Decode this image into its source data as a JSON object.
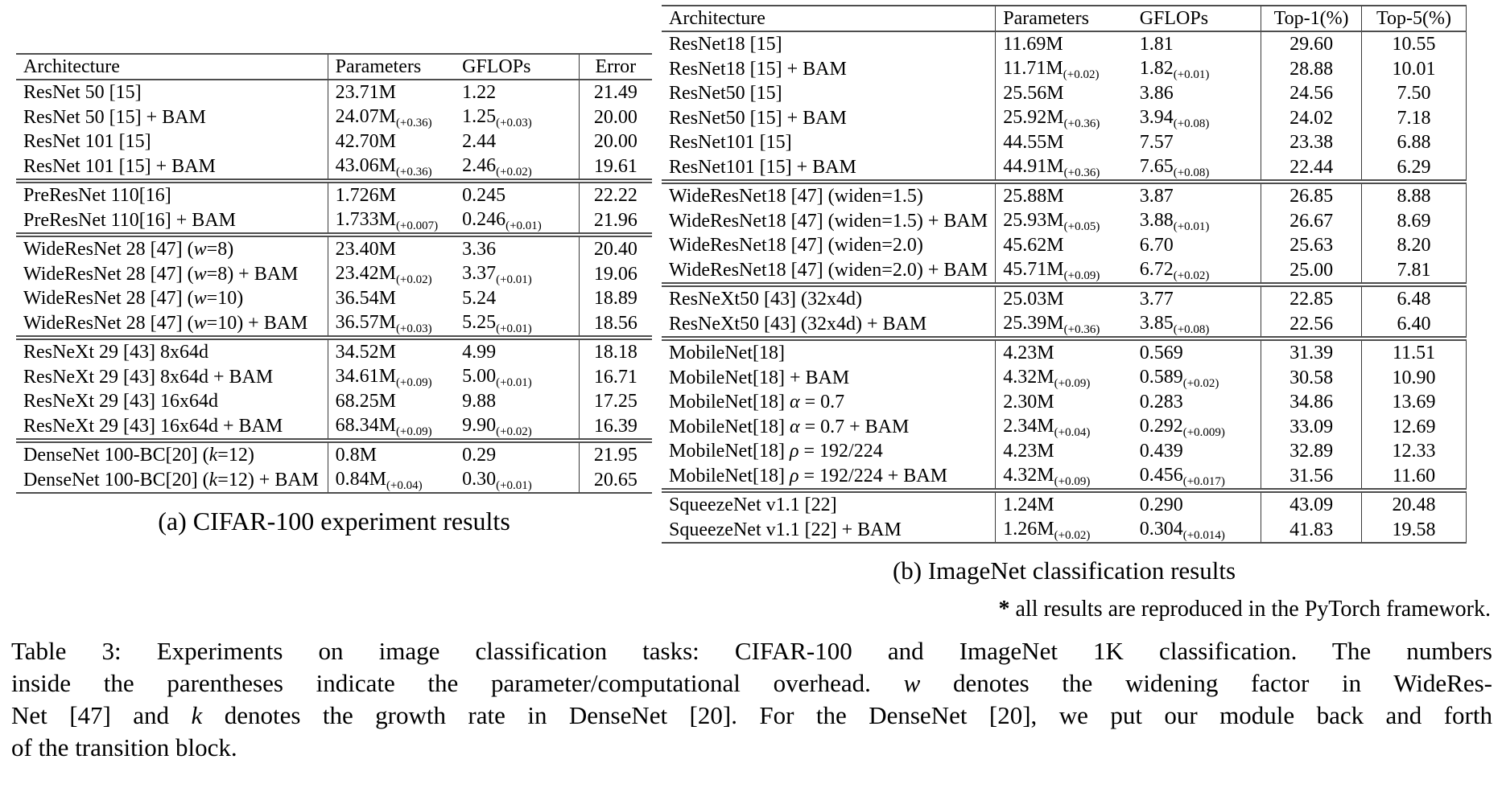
{
  "table_a": {
    "caption": "(a) CIFAR-100 experiment results",
    "columns": [
      "Architecture",
      "Parameters",
      "GFLOPs",
      "Error"
    ],
    "groups": [
      [
        {
          "arch": [
            {
              "t": "ResNet 50 [15]"
            }
          ],
          "p": "23.71M",
          "ps": "",
          "g": "1.22",
          "gs": "",
          "m": [
            "21.49"
          ],
          "b": false
        },
        {
          "arch": [
            {
              "t": "ResNet 50 [15] + BAM"
            }
          ],
          "p": "24.07M",
          "ps": "(+0.36)",
          "g": "1.25",
          "gs": "(+0.03)",
          "m": [
            "20.00"
          ],
          "b": true
        },
        {
          "arch": [
            {
              "t": "ResNet 101 [15]"
            }
          ],
          "p": "42.70M",
          "ps": "",
          "g": "2.44",
          "gs": "",
          "m": [
            "20.00"
          ],
          "b": false
        },
        {
          "arch": [
            {
              "t": "ResNet 101 [15] + BAM"
            }
          ],
          "p": "43.06M",
          "ps": "(+0.36)",
          "g": "2.46",
          "gs": "(+0.02)",
          "m": [
            "19.61"
          ],
          "b": true
        }
      ],
      [
        {
          "arch": [
            {
              "t": "PreResNet 110[16]"
            }
          ],
          "p": "1.726M",
          "ps": "",
          "g": "0.245",
          "gs": "",
          "m": [
            "22.22"
          ],
          "b": false
        },
        {
          "arch": [
            {
              "t": "PreResNet 110[16] + BAM"
            }
          ],
          "p": "1.733M",
          "ps": "(+0.007)",
          "g": "0.246",
          "gs": "(+0.01)",
          "m": [
            "21.96"
          ],
          "b": true
        }
      ],
      [
        {
          "arch": [
            {
              "t": "WideResNet 28 [47] ("
            },
            {
              "t": "w",
              "i": true
            },
            {
              "t": "=8)"
            }
          ],
          "p": "23.40M",
          "ps": "",
          "g": "3.36",
          "gs": "",
          "m": [
            "20.40"
          ],
          "b": false
        },
        {
          "arch": [
            {
              "t": "WideResNet 28 [47] ("
            },
            {
              "t": "w",
              "i": true
            },
            {
              "t": "=8) + BAM"
            }
          ],
          "p": "23.42M",
          "ps": "(+0.02)",
          "g": "3.37",
          "gs": "(+0.01)",
          "m": [
            "19.06"
          ],
          "b": true
        },
        {
          "arch": [
            {
              "t": "WideResNet 28 [47] ("
            },
            {
              "t": "w",
              "i": true
            },
            {
              "t": "=10)"
            }
          ],
          "p": "36.54M",
          "ps": "",
          "g": "5.24",
          "gs": "",
          "m": [
            "18.89"
          ],
          "b": false
        },
        {
          "arch": [
            {
              "t": "WideResNet 28 [47] ("
            },
            {
              "t": "w",
              "i": true
            },
            {
              "t": "=10) + BAM"
            }
          ],
          "p": "36.57M",
          "ps": "(+0.03)",
          "g": "5.25",
          "gs": "(+0.01)",
          "m": [
            "18.56"
          ],
          "b": true
        }
      ],
      [
        {
          "arch": [
            {
              "t": "ResNeXt 29 [43] 8x64d"
            }
          ],
          "p": "34.52M",
          "ps": "",
          "g": "4.99",
          "gs": "",
          "m": [
            "18.18"
          ],
          "b": false
        },
        {
          "arch": [
            {
              "t": "ResNeXt 29 [43] 8x64d + BAM"
            }
          ],
          "p": "34.61M",
          "ps": "(+0.09)",
          "g": "5.00",
          "gs": "(+0.01)",
          "m": [
            "16.71"
          ],
          "b": true
        },
        {
          "arch": [
            {
              "t": "ResNeXt 29 [43] 16x64d"
            }
          ],
          "p": "68.25M",
          "ps": "",
          "g": "9.88",
          "gs": "",
          "m": [
            "17.25"
          ],
          "b": false
        },
        {
          "arch": [
            {
              "t": "ResNeXt 29 [43] 16x64d + BAM"
            }
          ],
          "p": "68.34M",
          "ps": "(+0.09)",
          "g": "9.90",
          "gs": "(+0.02)",
          "m": [
            "16.39"
          ],
          "b": true
        }
      ],
      [
        {
          "arch": [
            {
              "t": "DenseNet 100-BC[20] ("
            },
            {
              "t": "k",
              "i": true
            },
            {
              "t": "=12)"
            }
          ],
          "p": "0.8M",
          "ps": "",
          "g": "0.29",
          "gs": "",
          "m": [
            "21.95"
          ],
          "b": false
        },
        {
          "arch": [
            {
              "t": "DenseNet 100-BC[20] ("
            },
            {
              "t": "k",
              "i": true
            },
            {
              "t": "=12) + BAM"
            }
          ],
          "p": "0.84M",
          "ps": "(+0.04)",
          "g": "0.30",
          "gs": "(+0.01)",
          "m": [
            "20.65"
          ],
          "b": true
        }
      ]
    ]
  },
  "table_b": {
    "caption": "(b) ImageNet classification results",
    "columns": [
      "Architecture",
      "Parameters",
      "GFLOPs",
      "Top-1(%)",
      "Top-5(%)"
    ],
    "footnote": {
      "star": "*",
      "text": " all results are reproduced in the PyTorch framework."
    },
    "groups": [
      [
        {
          "arch": [
            {
              "t": "ResNet18 [15]"
            }
          ],
          "p": "11.69M",
          "ps": "",
          "g": "1.81",
          "gs": "",
          "m": [
            "29.60",
            "10.55"
          ],
          "b": false
        },
        {
          "arch": [
            {
              "t": "ResNet18 [15] + BAM"
            }
          ],
          "p": "11.71M",
          "ps": "(+0.02)",
          "g": "1.82",
          "gs": "(+0.01)",
          "m": [
            "28.88",
            "10.01"
          ],
          "b": true
        },
        {
          "arch": [
            {
              "t": "ResNet50 [15]"
            }
          ],
          "p": "25.56M",
          "ps": "",
          "g": "3.86",
          "gs": "",
          "m": [
            "24.56",
            "7.50"
          ],
          "b": false
        },
        {
          "arch": [
            {
              "t": "ResNet50 [15] + BAM"
            }
          ],
          "p": "25.92M",
          "ps": "(+0.36)",
          "g": "3.94",
          "gs": "(+0.08)",
          "m": [
            "24.02",
            "7.18"
          ],
          "b": true
        },
        {
          "arch": [
            {
              "t": "ResNet101 [15]"
            }
          ],
          "p": "44.55M",
          "ps": "",
          "g": "7.57",
          "gs": "",
          "m": [
            "23.38",
            "6.88"
          ],
          "b": false
        },
        {
          "arch": [
            {
              "t": "ResNet101 [15] + BAM"
            }
          ],
          "p": "44.91M",
          "ps": "(+0.36)",
          "g": "7.65",
          "gs": "(+0.08)",
          "m": [
            "22.44",
            "6.29"
          ],
          "b": true
        }
      ],
      [
        {
          "arch": [
            {
              "t": "WideResNet18 [47] (widen=1.5)"
            }
          ],
          "p": "25.88M",
          "ps": "",
          "g": "3.87",
          "gs": "",
          "m": [
            "26.85",
            "8.88"
          ],
          "b": false
        },
        {
          "arch": [
            {
              "t": "WideResNet18 [47] (widen=1.5) + BAM"
            }
          ],
          "p": "25.93M",
          "ps": "(+0.05)",
          "g": "3.88",
          "gs": "(+0.01)",
          "m": [
            "26.67",
            "8.69"
          ],
          "b": true
        },
        {
          "arch": [
            {
              "t": "WideResNet18 [47] (widen=2.0)"
            }
          ],
          "p": "45.62M",
          "ps": "",
          "g": "6.70",
          "gs": "",
          "m": [
            "25.63",
            "8.20"
          ],
          "b": false
        },
        {
          "arch": [
            {
              "t": "WideResNet18 [47] (widen=2.0) + BAM"
            }
          ],
          "p": "45.71M",
          "ps": "(+0.09)",
          "g": "6.72",
          "gs": "(+0.02)",
          "m": [
            "25.00",
            "7.81"
          ],
          "b": true
        }
      ],
      [
        {
          "arch": [
            {
              "t": "ResNeXt50 [43] (32x4d)"
            }
          ],
          "p": "25.03M",
          "ps": "",
          "g": "3.77",
          "gs": "",
          "m": [
            "22.85",
            "6.48"
          ],
          "b": false
        },
        {
          "arch": [
            {
              "t": "ResNeXt50 [43] (32x4d) + BAM"
            }
          ],
          "p": "25.39M",
          "ps": "(+0.36)",
          "g": "3.85",
          "gs": "(+0.08)",
          "m": [
            "22.56",
            "6.40"
          ],
          "b": true
        }
      ],
      [
        {
          "arch": [
            {
              "t": "MobileNet[18]"
            }
          ],
          "p": "4.23M",
          "ps": "",
          "g": "0.569",
          "gs": "",
          "m": [
            "31.39",
            "11.51"
          ],
          "b": false
        },
        {
          "arch": [
            {
              "t": "MobileNet[18] + BAM"
            }
          ],
          "p": "4.32M",
          "ps": "(+0.09)",
          "g": "0.589",
          "gs": "(+0.02)",
          "m": [
            "30.58",
            "10.90"
          ],
          "b": true
        },
        {
          "arch": [
            {
              "t": "MobileNet[18] "
            },
            {
              "t": "α",
              "i": true
            },
            {
              "t": " = 0.7"
            }
          ],
          "p": "2.30M",
          "ps": "",
          "g": "0.283",
          "gs": "",
          "m": [
            "34.86",
            "13.69"
          ],
          "b": false
        },
        {
          "arch": [
            {
              "t": "MobileNet[18] "
            },
            {
              "t": "α",
              "i": true
            },
            {
              "t": " = 0.7 + BAM"
            }
          ],
          "p": "2.34M",
          "ps": "(+0.04)",
          "g": "0.292",
          "gs": "(+0.009)",
          "m": [
            "33.09",
            "12.69"
          ],
          "b": true
        },
        {
          "arch": [
            {
              "t": "MobileNet[18] "
            },
            {
              "t": "ρ",
              "i": true
            },
            {
              "t": " = 192/224"
            }
          ],
          "p": "4.23M",
          "ps": "",
          "g": "0.439",
          "gs": "",
          "m": [
            "32.89",
            "12.33"
          ],
          "b": false
        },
        {
          "arch": [
            {
              "t": "MobileNet[18] "
            },
            {
              "t": "ρ",
              "i": true
            },
            {
              "t": " = 192/224 + BAM"
            }
          ],
          "p": "4.32M",
          "ps": "(+0.09)",
          "g": "0.456",
          "gs": "(+0.017)",
          "m": [
            "31.56",
            "11.60"
          ],
          "b": true
        }
      ],
      [
        {
          "arch": [
            {
              "t": "SqueezeNet v1.1 [22]"
            }
          ],
          "p": "1.24M",
          "ps": "",
          "g": "0.290",
          "gs": "",
          "m": [
            "43.09",
            "20.48"
          ],
          "b": false
        },
        {
          "arch": [
            {
              "t": "SqueezeNet v1.1 [22] + BAM"
            }
          ],
          "p": "1.26M",
          "ps": "(+0.02)",
          "g": "0.304",
          "gs": "(+0.014)",
          "m": [
            "41.83",
            "19.58"
          ],
          "b": true
        }
      ]
    ]
  },
  "main_caption": {
    "lines": [
      [
        {
          "t": "Table 3: Experiments on image classification tasks: CIFAR-100 and ImageNet 1K classification. The numbers"
        }
      ],
      [
        {
          "t": "inside the parentheses indicate the parameter/computational overhead. "
        },
        {
          "t": "w",
          "i": true
        },
        {
          "t": " denotes the widening factor in WideRes-"
        }
      ],
      [
        {
          "t": "Net [47] and "
        },
        {
          "t": "k",
          "i": true
        },
        {
          "t": " denotes the growth rate in DenseNet [20]. For the DenseNet [20], we put our module back and forth"
        }
      ],
      [
        {
          "t": "of the transition block."
        }
      ]
    ]
  }
}
